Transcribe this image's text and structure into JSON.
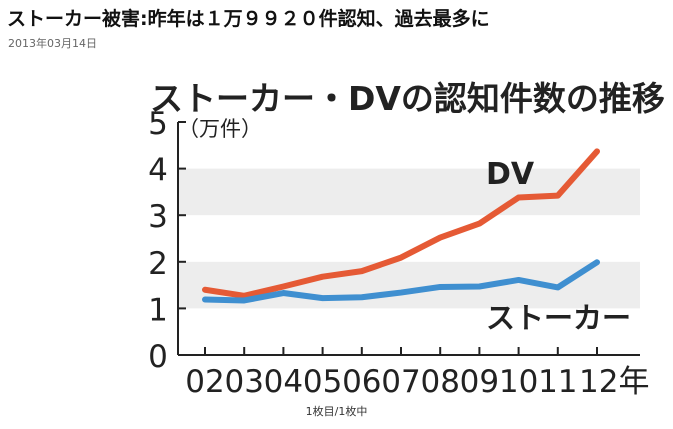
{
  "article": {
    "headline": "ストーカー被害:昨年は１万９９２０件認知、過去最多に",
    "date": "2013年03月14日",
    "image_caption": "1枚目/1枚中"
  },
  "chart_data": {
    "type": "line",
    "title": "ストーカー・DVの認知件数の推移",
    "ylabel": "（万件）",
    "x_suffix": "年",
    "categories": [
      "02",
      "03",
      "04",
      "05",
      "06",
      "07",
      "08",
      "09",
      "10",
      "11",
      "12"
    ],
    "ylim": [
      0,
      5
    ],
    "yticks": [
      0,
      1,
      2,
      3,
      4,
      5
    ],
    "grid": "alternating horizontal bands",
    "series": [
      {
        "name": "DV",
        "color": "#e55a35",
        "values": [
          1.4,
          1.27,
          1.47,
          1.68,
          1.8,
          2.09,
          2.52,
          2.82,
          3.38,
          3.42,
          4.37
        ]
      },
      {
        "name": "ストーカー",
        "color": "#3f8fd0",
        "values": [
          1.19,
          1.17,
          1.33,
          1.22,
          1.24,
          1.34,
          1.46,
          1.47,
          1.61,
          1.45,
          1.99
        ]
      }
    ]
  }
}
